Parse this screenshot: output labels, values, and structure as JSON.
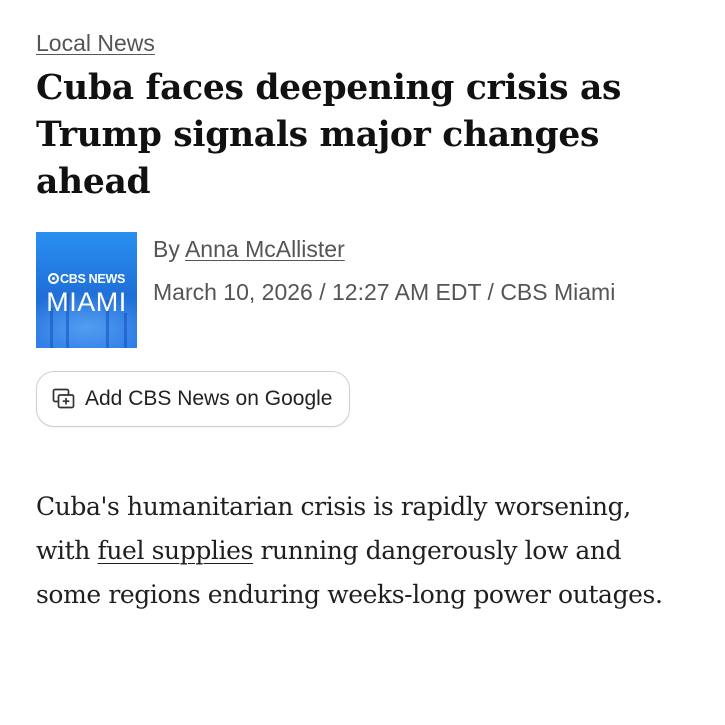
{
  "article": {
    "category": "Local News",
    "headline": "Cuba faces deepening crisis as Trump signals major changes ahead",
    "byline_prefix": "By",
    "author": "Anna McAllister",
    "meta": "March 10, 2026 / 12:27 AM EDT / CBS Miami",
    "thumbnail": {
      "brand": "CBS NEWS",
      "city": "MIAMI",
      "background_color": "#1f6fd8"
    },
    "google_button": {
      "label": "Add CBS News on Google",
      "icon": "add-to-google-icon"
    },
    "body": {
      "before_link": "Cuba's humanitarian crisis is rapidly worsening, with ",
      "link_text": "fuel supplies",
      "after_link": " running dangerously low and some regions enduring weeks-long power outages."
    }
  }
}
